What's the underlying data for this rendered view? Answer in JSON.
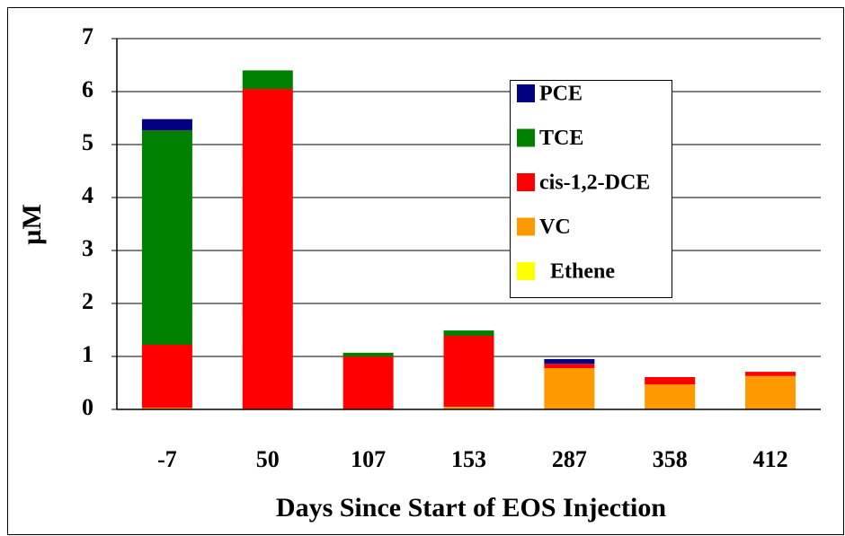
{
  "chart_data": {
    "type": "stacked_bar",
    "x_label": "Days Since Start of EOS Injection",
    "y_label": "µM",
    "categories": [
      "-7",
      "50",
      "107",
      "153",
      "287",
      "358",
      "412"
    ],
    "series": [
      {
        "name": "PCE",
        "color": "#000080",
        "values": [
          0.21,
          0,
          0,
          0,
          0.09,
          0,
          0
        ]
      },
      {
        "name": "TCE",
        "color": "#008000",
        "values": [
          4.05,
          0.35,
          0.07,
          0.1,
          0,
          0,
          0
        ]
      },
      {
        "name": "cis-1,2-DCE",
        "color": "#ff0000",
        "values": [
          1.19,
          6.05,
          1.0,
          1.34,
          0.08,
          0.14,
          0.08
        ]
      },
      {
        "name": "VC",
        "color": "#ff9900",
        "values": [
          0.03,
          0,
          0,
          0.05,
          0.78,
          0.47,
          0.63
        ]
      },
      {
        "name": "Ethene",
        "color": "#ffff00",
        "values": [
          0,
          0,
          0,
          0,
          0,
          0,
          0
        ]
      }
    ],
    "ylim": [
      0,
      7
    ],
    "yticks": [
      0,
      1,
      2,
      3,
      4,
      5,
      6,
      7
    ],
    "grid": true
  }
}
